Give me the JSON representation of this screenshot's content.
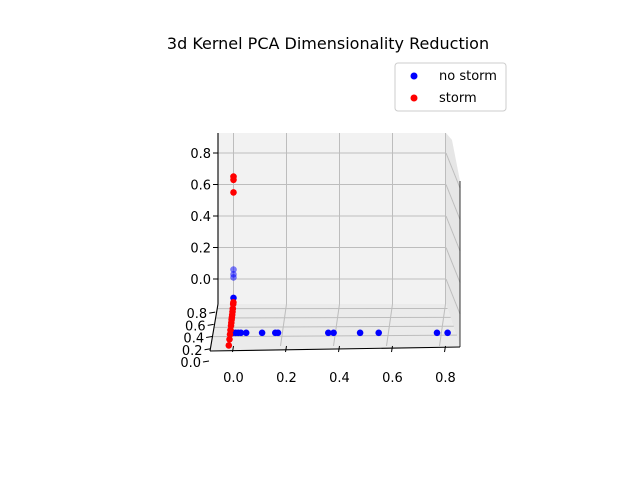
{
  "chart_data": {
    "type": "scatter",
    "projection": "3d",
    "title": "3d Kernel PCA Dimensionality Reduction",
    "xlabel": "",
    "ylabel": "",
    "zlabel": "",
    "grid": true,
    "legend_placement": "upper-right",
    "x_ticks": [
      "0.0",
      "0.2",
      "0.4",
      "0.6",
      "0.8"
    ],
    "y_ticks": [
      "0.0",
      "0.2",
      "0.4",
      "0.6",
      "0.8"
    ],
    "z_ticks": [
      "0.0",
      "0.2",
      "0.4",
      "0.6",
      "0.8"
    ],
    "xlim": [
      -0.05,
      0.88
    ],
    "ylim": [
      0.0,
      0.9
    ],
    "zlim": [
      -0.15,
      0.9
    ],
    "series": [
      {
        "name": "no storm",
        "color": "#0000ff",
        "points": [
          {
            "x": 0.0,
            "y": 0.9,
            "z": 0.06
          },
          {
            "x": 0.0,
            "y": 0.9,
            "z": 0.03
          },
          {
            "x": 0.0,
            "y": 0.9,
            "z": 0.01
          },
          {
            "x": 0.0,
            "y": 0.9,
            "z": -0.12
          },
          {
            "x": 0.02,
            "y": 0.02,
            "z": 0.0
          },
          {
            "x": 0.03,
            "y": 0.02,
            "z": 0.0
          },
          {
            "x": 0.04,
            "y": 0.02,
            "z": 0.0
          },
          {
            "x": 0.05,
            "y": 0.02,
            "z": 0.0
          },
          {
            "x": 0.07,
            "y": 0.02,
            "z": 0.0
          },
          {
            "x": 0.13,
            "y": 0.02,
            "z": 0.0
          },
          {
            "x": 0.18,
            "y": 0.02,
            "z": 0.0
          },
          {
            "x": 0.19,
            "y": 0.02,
            "z": 0.0
          },
          {
            "x": 0.38,
            "y": 0.02,
            "z": 0.0
          },
          {
            "x": 0.4,
            "y": 0.02,
            "z": 0.0
          },
          {
            "x": 0.5,
            "y": 0.02,
            "z": 0.0
          },
          {
            "x": 0.57,
            "y": 0.02,
            "z": 0.0
          },
          {
            "x": 0.79,
            "y": 0.02,
            "z": 0.0
          },
          {
            "x": 0.83,
            "y": 0.02,
            "z": 0.0
          }
        ]
      },
      {
        "name": "storm",
        "color": "#ff0000",
        "points": [
          {
            "x": 0.0,
            "y": 0.9,
            "z": 0.65
          },
          {
            "x": 0.0,
            "y": 0.9,
            "z": 0.63
          },
          {
            "x": 0.0,
            "y": 0.9,
            "z": 0.55
          },
          {
            "x": 0.0,
            "y": 0.88,
            "z": -0.14
          },
          {
            "x": 0.0,
            "y": 0.85,
            "z": -0.14
          },
          {
            "x": 0.0,
            "y": 0.8,
            "z": -0.15
          },
          {
            "x": 0.0,
            "y": 0.75,
            "z": -0.15
          },
          {
            "x": 0.0,
            "y": 0.7,
            "z": -0.15
          },
          {
            "x": 0.0,
            "y": 0.66,
            "z": -0.15
          },
          {
            "x": 0.0,
            "y": 0.62,
            "z": -0.15
          },
          {
            "x": 0.0,
            "y": 0.57,
            "z": -0.15
          },
          {
            "x": 0.0,
            "y": 0.52,
            "z": -0.15
          },
          {
            "x": 0.0,
            "y": 0.45,
            "z": -0.15
          },
          {
            "x": 0.0,
            "y": 0.38,
            "z": -0.15
          },
          {
            "x": 0.0,
            "y": 0.3,
            "z": -0.15
          },
          {
            "x": 0.0,
            "y": 0.2,
            "z": -0.15
          }
        ]
      }
    ]
  }
}
